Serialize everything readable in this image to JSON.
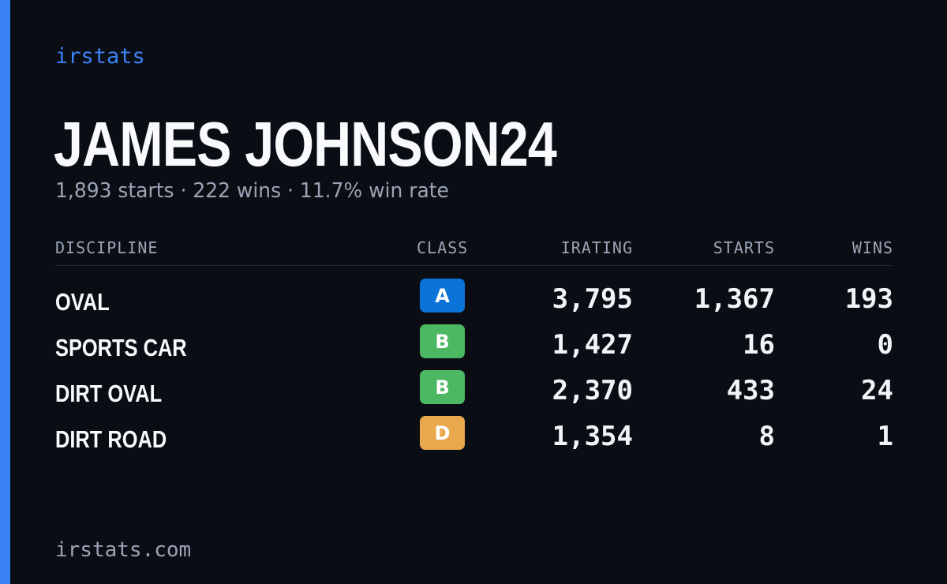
{
  "brand": "irstats",
  "driver": {
    "name": "JAMES JOHNSON24",
    "summary": "1,893 starts · 222 wins · 11.7% win rate"
  },
  "table": {
    "headers": {
      "discipline": "DISCIPLINE",
      "class": "CLASS",
      "irating": "IRATING",
      "starts": "STARTS",
      "wins": "WINS"
    },
    "rows": [
      {
        "discipline": "OVAL",
        "class": "A",
        "class_color": "#0b74d9",
        "irating": "3,795",
        "starts": "1,367",
        "wins": "193"
      },
      {
        "discipline": "SPORTS CAR",
        "class": "B",
        "class_color": "#4cb864",
        "irating": "1,427",
        "starts": "16",
        "wins": "0"
      },
      {
        "discipline": "DIRT OVAL",
        "class": "B",
        "class_color": "#4cb864",
        "irating": "2,370",
        "starts": "433",
        "wins": "24"
      },
      {
        "discipline": "DIRT ROAD",
        "class": "D",
        "class_color": "#e8a84c",
        "irating": "1,354",
        "starts": "8",
        "wins": "1"
      }
    ]
  },
  "footer": "irstats.com",
  "colors": {
    "accent": "#3b82f6",
    "background": "#0a0d14",
    "muted_text": "#9aa4b6"
  }
}
